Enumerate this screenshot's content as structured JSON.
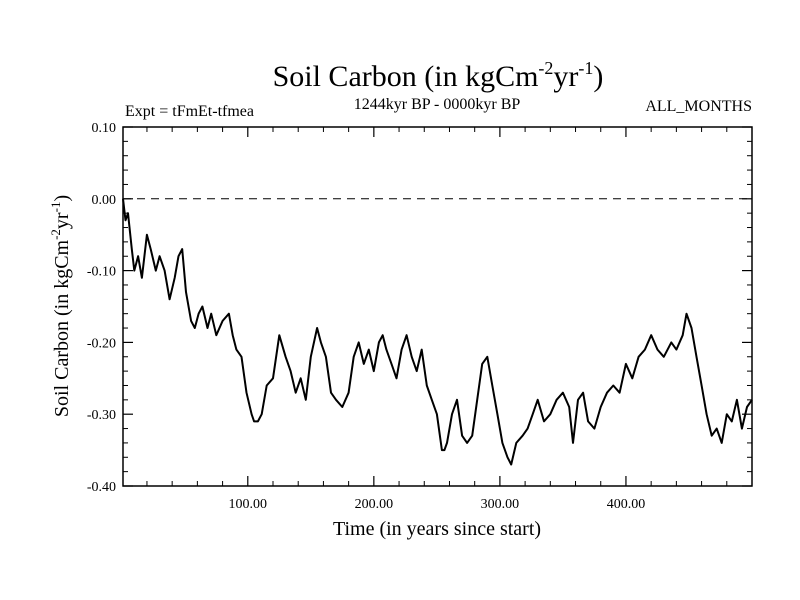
{
  "chart_data": {
    "type": "line",
    "title": {
      "main": "Soil Carbon (in kgCm",
      "sup1": "-2",
      "mid": "yr",
      "sup2": "-1",
      "end": ")"
    },
    "subtitle_left": "Expt = tFmEt-tfmea",
    "subtitle_center": "1244kyr BP - 0000kyr BP",
    "subtitle_right": "ALL_MONTHS",
    "xlabel": "Time (in years since start)",
    "ylabel": {
      "main": "Soil Carbon (in kgCm",
      "sup1": "-2",
      "mid": "yr",
      "sup2": "-1",
      "end": ")"
    },
    "xlim": [
      1,
      500
    ],
    "ylim": [
      -0.4,
      0.1
    ],
    "x_ticks": [
      {
        "value": 100,
        "label": "100.00"
      },
      {
        "value": 200,
        "label": "200.00"
      },
      {
        "value": 300,
        "label": "300.00"
      },
      {
        "value": 400,
        "label": "400.00"
      }
    ],
    "y_ticks": [
      {
        "value": 0.1,
        "label": "0.10"
      },
      {
        "value": 0.0,
        "label": "0.00"
      },
      {
        "value": -0.1,
        "label": "-0.10"
      },
      {
        "value": -0.2,
        "label": "-0.20"
      },
      {
        "value": -0.3,
        "label": "-0.30"
      },
      {
        "value": -0.4,
        "label": "-0.40"
      }
    ],
    "reference_line": {
      "y": 0.0,
      "style": "dashed"
    },
    "series": [
      {
        "name": "Soil Carbon",
        "x": [
          1,
          3,
          5,
          8,
          10,
          13,
          16,
          20,
          23,
          27,
          30,
          34,
          38,
          42,
          45,
          48,
          51,
          55,
          58,
          61,
          64,
          68,
          71,
          75,
          80,
          85,
          88,
          91,
          95,
          99,
          103,
          105,
          108,
          111,
          115,
          120,
          125,
          130,
          134,
          138,
          142,
          146,
          150,
          155,
          158,
          162,
          166,
          170,
          175,
          180,
          184,
          188,
          192,
          196,
          200,
          204,
          207,
          210,
          214,
          218,
          222,
          226,
          230,
          234,
          238,
          242,
          246,
          250,
          254,
          256,
          258,
          262,
          266,
          270,
          274,
          278,
          282,
          286,
          290,
          294,
          298,
          302,
          306,
          309,
          313,
          318,
          322,
          326,
          330,
          335,
          340,
          345,
          350,
          355,
          358,
          362,
          366,
          370,
          375,
          380,
          385,
          390,
          395,
          400,
          405,
          410,
          415,
          420,
          425,
          430,
          436,
          440,
          445,
          448,
          452,
          456,
          460,
          464,
          468,
          472,
          476,
          480,
          484,
          488,
          492,
          496,
          500
        ],
        "y": [
          0.0,
          -0.03,
          -0.02,
          -0.07,
          -0.1,
          -0.08,
          -0.11,
          -0.05,
          -0.07,
          -0.1,
          -0.08,
          -0.1,
          -0.14,
          -0.11,
          -0.08,
          -0.07,
          -0.13,
          -0.17,
          -0.18,
          -0.16,
          -0.15,
          -0.18,
          -0.16,
          -0.19,
          -0.17,
          -0.16,
          -0.19,
          -0.21,
          -0.22,
          -0.27,
          -0.3,
          -0.31,
          -0.31,
          -0.3,
          -0.26,
          -0.25,
          -0.19,
          -0.22,
          -0.24,
          -0.27,
          -0.25,
          -0.28,
          -0.22,
          -0.18,
          -0.2,
          -0.22,
          -0.27,
          -0.28,
          -0.29,
          -0.27,
          -0.22,
          -0.2,
          -0.23,
          -0.21,
          -0.24,
          -0.2,
          -0.19,
          -0.21,
          -0.23,
          -0.25,
          -0.21,
          -0.19,
          -0.22,
          -0.24,
          -0.21,
          -0.26,
          -0.28,
          -0.3,
          -0.35,
          -0.35,
          -0.34,
          -0.3,
          -0.28,
          -0.33,
          -0.34,
          -0.33,
          -0.28,
          -0.23,
          -0.22,
          -0.26,
          -0.3,
          -0.34,
          -0.36,
          -0.37,
          -0.34,
          -0.33,
          -0.32,
          -0.3,
          -0.28,
          -0.31,
          -0.3,
          -0.28,
          -0.27,
          -0.29,
          -0.34,
          -0.28,
          -0.27,
          -0.31,
          -0.32,
          -0.29,
          -0.27,
          -0.26,
          -0.27,
          -0.23,
          -0.25,
          -0.22,
          -0.21,
          -0.19,
          -0.21,
          -0.22,
          -0.2,
          -0.21,
          -0.19,
          -0.16,
          -0.18,
          -0.22,
          -0.26,
          -0.3,
          -0.33,
          -0.32,
          -0.34,
          -0.3,
          -0.31,
          -0.28,
          -0.32,
          -0.29,
          -0.28
        ]
      }
    ]
  }
}
